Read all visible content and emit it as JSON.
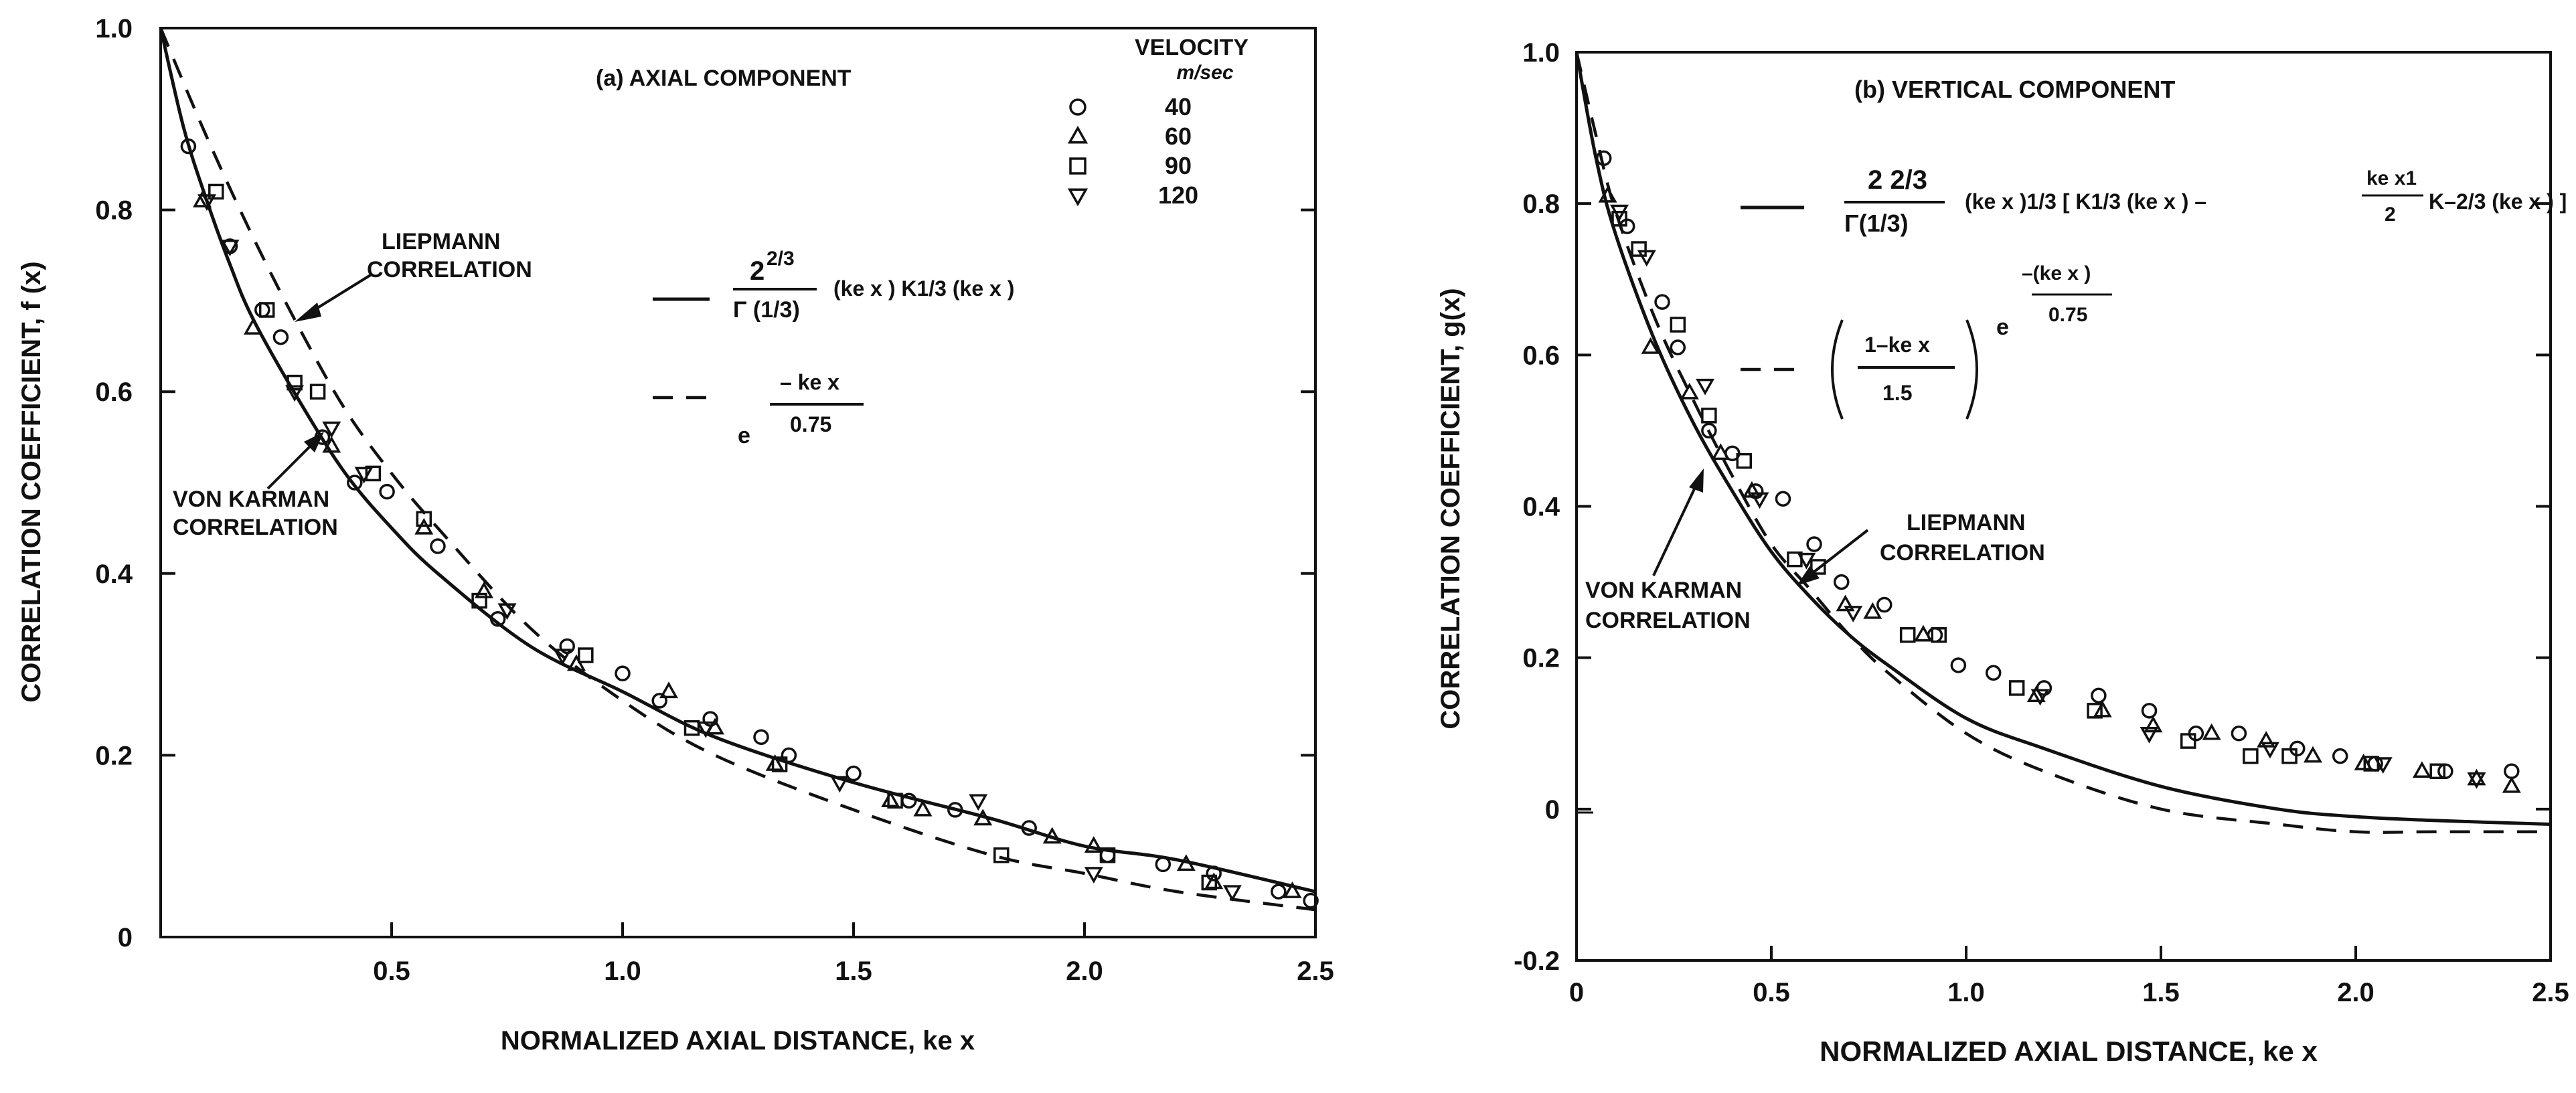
{
  "chart_data": [
    {
      "type": "scatter",
      "panel_title": "(a) AXIAL COMPONENT",
      "xlabel": "NORMALIZED AXIAL DISTANCE, ke x",
      "ylabel": "CORRELATION COEFFICIENT, f (x)",
      "xlim": [
        0,
        2.5
      ],
      "ylim": [
        0,
        1.0
      ],
      "x_ticks": [
        "0.5",
        "1.0",
        "1.5",
        "2.0",
        "2.5"
      ],
      "x_tick_values": [
        0.5,
        1.0,
        1.5,
        2.0,
        2.5
      ],
      "y_ticks": [
        "0",
        "0.2",
        "0.4",
        "0.6",
        "0.8",
        "1.0"
      ],
      "y_tick_values": [
        0,
        0.2,
        0.4,
        0.6,
        0.8,
        1.0
      ],
      "legend": {
        "title": "VELOCITY",
        "subtitle": "m/sec",
        "entries": [
          {
            "symbol": "circle",
            "label": "40"
          },
          {
            "symbol": "triangle-up",
            "label": "60"
          },
          {
            "symbol": "square",
            "label": "90"
          },
          {
            "symbol": "triangle-down",
            "label": "120"
          }
        ]
      },
      "formula_solid": {
        "num": "2",
        "sup": "2/3",
        "den": "Γ (1/3)",
        "body": "(ke x ) K1/3 (ke x )"
      },
      "formula_dashed": {
        "base": "e",
        "num": "– ke x",
        "den": "0.75"
      },
      "annotations": {
        "liepmann": "LIEPMANN CORRELATION",
        "von_karman": "VON KARMAN CORRELATION"
      },
      "series": [
        {
          "name": "40",
          "symbol": "circle",
          "x": [
            0.06,
            0.15,
            0.22,
            0.26,
            0.35,
            0.42,
            0.49,
            0.6,
            0.73,
            0.88,
            1.0,
            1.08,
            1.19,
            1.3,
            1.36,
            1.5,
            1.62,
            1.72,
            1.88,
            2.05,
            2.17,
            2.28,
            2.42,
            2.49
          ],
          "y": [
            0.87,
            0.76,
            0.69,
            0.66,
            0.55,
            0.5,
            0.49,
            0.43,
            0.35,
            0.32,
            0.29,
            0.26,
            0.24,
            0.22,
            0.2,
            0.18,
            0.15,
            0.14,
            0.12,
            0.09,
            0.08,
            0.07,
            0.05,
            0.04
          ]
        },
        {
          "name": "60",
          "symbol": "triangle-up",
          "x": [
            0.09,
            0.2,
            0.37,
            0.57,
            0.7,
            0.9,
            1.1,
            1.2,
            1.33,
            1.58,
            1.65,
            1.78,
            1.93,
            2.02,
            2.22,
            2.28,
            2.45
          ],
          "y": [
            0.81,
            0.67,
            0.54,
            0.45,
            0.38,
            0.3,
            0.27,
            0.23,
            0.19,
            0.15,
            0.14,
            0.13,
            0.11,
            0.1,
            0.08,
            0.06,
            0.05
          ]
        },
        {
          "name": "90",
          "symbol": "square",
          "x": [
            0.12,
            0.23,
            0.29,
            0.34,
            0.46,
            0.57,
            0.69,
            0.92,
            1.15,
            1.34,
            1.59,
            1.82,
            2.05,
            2.27
          ],
          "y": [
            0.82,
            0.69,
            0.61,
            0.6,
            0.51,
            0.46,
            0.37,
            0.31,
            0.23,
            0.19,
            0.15,
            0.09,
            0.09,
            0.06
          ]
        },
        {
          "name": "120",
          "symbol": "triangle-down",
          "x": [
            0.1,
            0.15,
            0.29,
            0.37,
            0.44,
            0.75,
            0.87,
            1.18,
            1.47,
            1.77,
            2.02,
            2.32
          ],
          "y": [
            0.81,
            0.76,
            0.6,
            0.56,
            0.51,
            0.36,
            0.31,
            0.23,
            0.17,
            0.15,
            0.07,
            0.05
          ]
        }
      ],
      "curves": [
        {
          "name": "von Karman",
          "style": "solid",
          "x": [
            0.0,
            0.05,
            0.1,
            0.15,
            0.2,
            0.3,
            0.4,
            0.5,
            0.6,
            0.8,
            1.0,
            1.2,
            1.5,
            1.8,
            2.0,
            2.2,
            2.5
          ],
          "y": [
            1.0,
            0.89,
            0.81,
            0.74,
            0.68,
            0.59,
            0.51,
            0.45,
            0.4,
            0.32,
            0.27,
            0.22,
            0.17,
            0.13,
            0.1,
            0.085,
            0.05
          ]
        },
        {
          "name": "Liepmann",
          "style": "dashed",
          "x": [
            0.0,
            0.1,
            0.2,
            0.3,
            0.4,
            0.5,
            0.6,
            0.8,
            1.0,
            1.2,
            1.5,
            1.8,
            2.0,
            2.2,
            2.5
          ],
          "y": [
            1.0,
            0.88,
            0.77,
            0.67,
            0.58,
            0.51,
            0.45,
            0.34,
            0.26,
            0.2,
            0.14,
            0.09,
            0.07,
            0.05,
            0.03
          ]
        }
      ]
    },
    {
      "type": "scatter",
      "panel_title": "(b) VERTICAL COMPONENT",
      "xlabel": "NORMALIZED AXIAL DISTANCE, ke x",
      "ylabel": "CORRELATION COEFFICIENT, g(x)",
      "xlim": [
        0,
        2.5
      ],
      "ylim": [
        -0.2,
        1.0
      ],
      "x_ticks": [
        "0",
        "0.5",
        "1.0",
        "1.5",
        "2.0",
        "2.5"
      ],
      "x_tick_values": [
        0,
        0.5,
        1.0,
        1.5,
        2.0,
        2.5
      ],
      "y_ticks": [
        "-0.2",
        "0",
        "0.2",
        "0.4",
        "0.6",
        "0.8",
        "1.0"
      ],
      "y_tick_values": [
        -0.2,
        0,
        0.2,
        0.4,
        0.6,
        0.8,
        1.0
      ],
      "formula_solid": {
        "num": "2 2/3",
        "den": "Γ(1/3)",
        "body": "(ke x )1/3 [ K1/3 (ke x ) – ",
        "frac_num": "ke x1",
        "frac_den": "2",
        "tail": "K–2/3 (ke x ) ]"
      },
      "formula_dashed": {
        "paren_num": "1–ke x",
        "paren_den": "1.5",
        "base": "e",
        "exp_num": "–(ke x )",
        "exp_den": "0.75"
      },
      "annotations": {
        "liepmann": "LIEPMANN CORRELATION",
        "von_karman": "VON KARMAN CORRELATION"
      },
      "series": [
        {
          "name": "40",
          "symbol": "circle",
          "x": [
            0.07,
            0.13,
            0.22,
            0.26,
            0.34,
            0.4,
            0.46,
            0.53,
            0.61,
            0.68,
            0.79,
            0.92,
            0.98,
            1.07,
            1.2,
            1.34,
            1.47,
            1.59,
            1.7,
            1.85,
            1.96,
            2.05,
            2.23,
            2.4
          ],
          "y": [
            0.86,
            0.77,
            0.67,
            0.61,
            0.5,
            0.47,
            0.42,
            0.41,
            0.35,
            0.3,
            0.27,
            0.23,
            0.19,
            0.18,
            0.16,
            0.15,
            0.13,
            0.1,
            0.1,
            0.08,
            0.07,
            0.06,
            0.05,
            0.05
          ]
        },
        {
          "name": "60",
          "symbol": "triangle-up",
          "x": [
            0.08,
            0.19,
            0.29,
            0.37,
            0.45,
            0.69,
            0.76,
            0.89,
            1.18,
            1.35,
            1.48,
            1.63,
            1.77,
            1.89,
            2.02,
            2.17,
            2.31,
            2.4
          ],
          "y": [
            0.81,
            0.61,
            0.55,
            0.47,
            0.42,
            0.27,
            0.26,
            0.23,
            0.15,
            0.13,
            0.11,
            0.1,
            0.09,
            0.07,
            0.06,
            0.05,
            0.04,
            0.03
          ]
        },
        {
          "name": "90",
          "symbol": "square",
          "x": [
            0.11,
            0.16,
            0.26,
            0.34,
            0.43,
            0.56,
            0.62,
            0.85,
            0.93,
            1.13,
            1.33,
            1.57,
            1.73,
            1.83,
            2.04,
            2.21
          ],
          "y": [
            0.78,
            0.74,
            0.64,
            0.52,
            0.46,
            0.33,
            0.32,
            0.23,
            0.23,
            0.16,
            0.13,
            0.09,
            0.07,
            0.07,
            0.06,
            0.05
          ]
        },
        {
          "name": "120",
          "symbol": "triangle-down",
          "x": [
            0.11,
            0.18,
            0.33,
            0.47,
            0.59,
            0.71,
            1.19,
            1.47,
            1.78,
            2.07,
            2.31
          ],
          "y": [
            0.79,
            0.73,
            0.56,
            0.41,
            0.33,
            0.26,
            0.15,
            0.1,
            0.08,
            0.06,
            0.04
          ]
        }
      ],
      "curves": [
        {
          "name": "von Karman",
          "style": "solid",
          "x": [
            0.0,
            0.05,
            0.1,
            0.2,
            0.3,
            0.4,
            0.5,
            0.6,
            0.7,
            0.8,
            1.0,
            1.2,
            1.5,
            1.8,
            2.0,
            2.2,
            2.5
          ],
          "y": [
            1.0,
            0.86,
            0.76,
            0.62,
            0.51,
            0.42,
            0.34,
            0.28,
            0.23,
            0.19,
            0.12,
            0.08,
            0.03,
            0.0,
            -0.01,
            -0.015,
            -0.02
          ]
        },
        {
          "name": "Liepmann",
          "style": "dashed",
          "x": [
            0.0,
            0.05,
            0.1,
            0.2,
            0.3,
            0.4,
            0.5,
            0.6,
            0.7,
            0.8,
            1.0,
            1.2,
            1.5,
            1.8,
            2.0,
            2.2,
            2.5
          ],
          "y": [
            1.0,
            0.89,
            0.79,
            0.65,
            0.54,
            0.44,
            0.35,
            0.29,
            0.23,
            0.18,
            0.1,
            0.05,
            0.0,
            -0.02,
            -0.03,
            -0.03,
            -0.03
          ]
        }
      ]
    }
  ]
}
